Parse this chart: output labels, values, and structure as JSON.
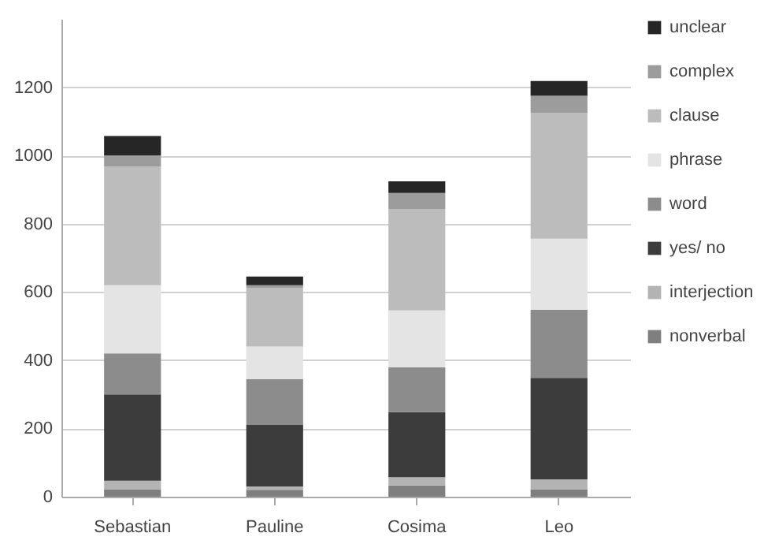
{
  "chart_data": {
    "type": "bar",
    "stacked": true,
    "categories": [
      "Sebastian",
      "Pauline",
      "Cosima",
      "Leo"
    ],
    "series": [
      {
        "name": "nonverbal",
        "color": "#7f7f7f",
        "values": [
          22,
          20,
          33,
          22
        ]
      },
      {
        "name": "interjection",
        "color": "#b3b3b3",
        "values": [
          25,
          10,
          24,
          29
        ]
      },
      {
        "name": "yes/ no",
        "color": "#3c3c3c",
        "values": [
          253,
          180,
          191,
          297
        ]
      },
      {
        "name": "word",
        "color": "#8c8c8c",
        "values": [
          120,
          135,
          131,
          200
        ]
      },
      {
        "name": "phrase",
        "color": "#e4e4e4",
        "values": [
          200,
          95,
          167,
          208
        ]
      },
      {
        "name": "clause",
        "color": "#bcbcbc",
        "values": [
          348,
          172,
          296,
          369
        ]
      },
      {
        "name": "complex",
        "color": "#9c9c9c",
        "values": [
          32,
          8,
          48,
          50
        ]
      },
      {
        "name": "unclear",
        "color": "#262626",
        "values": [
          57,
          25,
          34,
          43
        ]
      }
    ],
    "ylim": [
      0,
      1400
    ],
    "yticks": [
      0,
      200,
      400,
      600,
      800,
      1000,
      1200
    ],
    "grid": "y",
    "legend": "right"
  }
}
